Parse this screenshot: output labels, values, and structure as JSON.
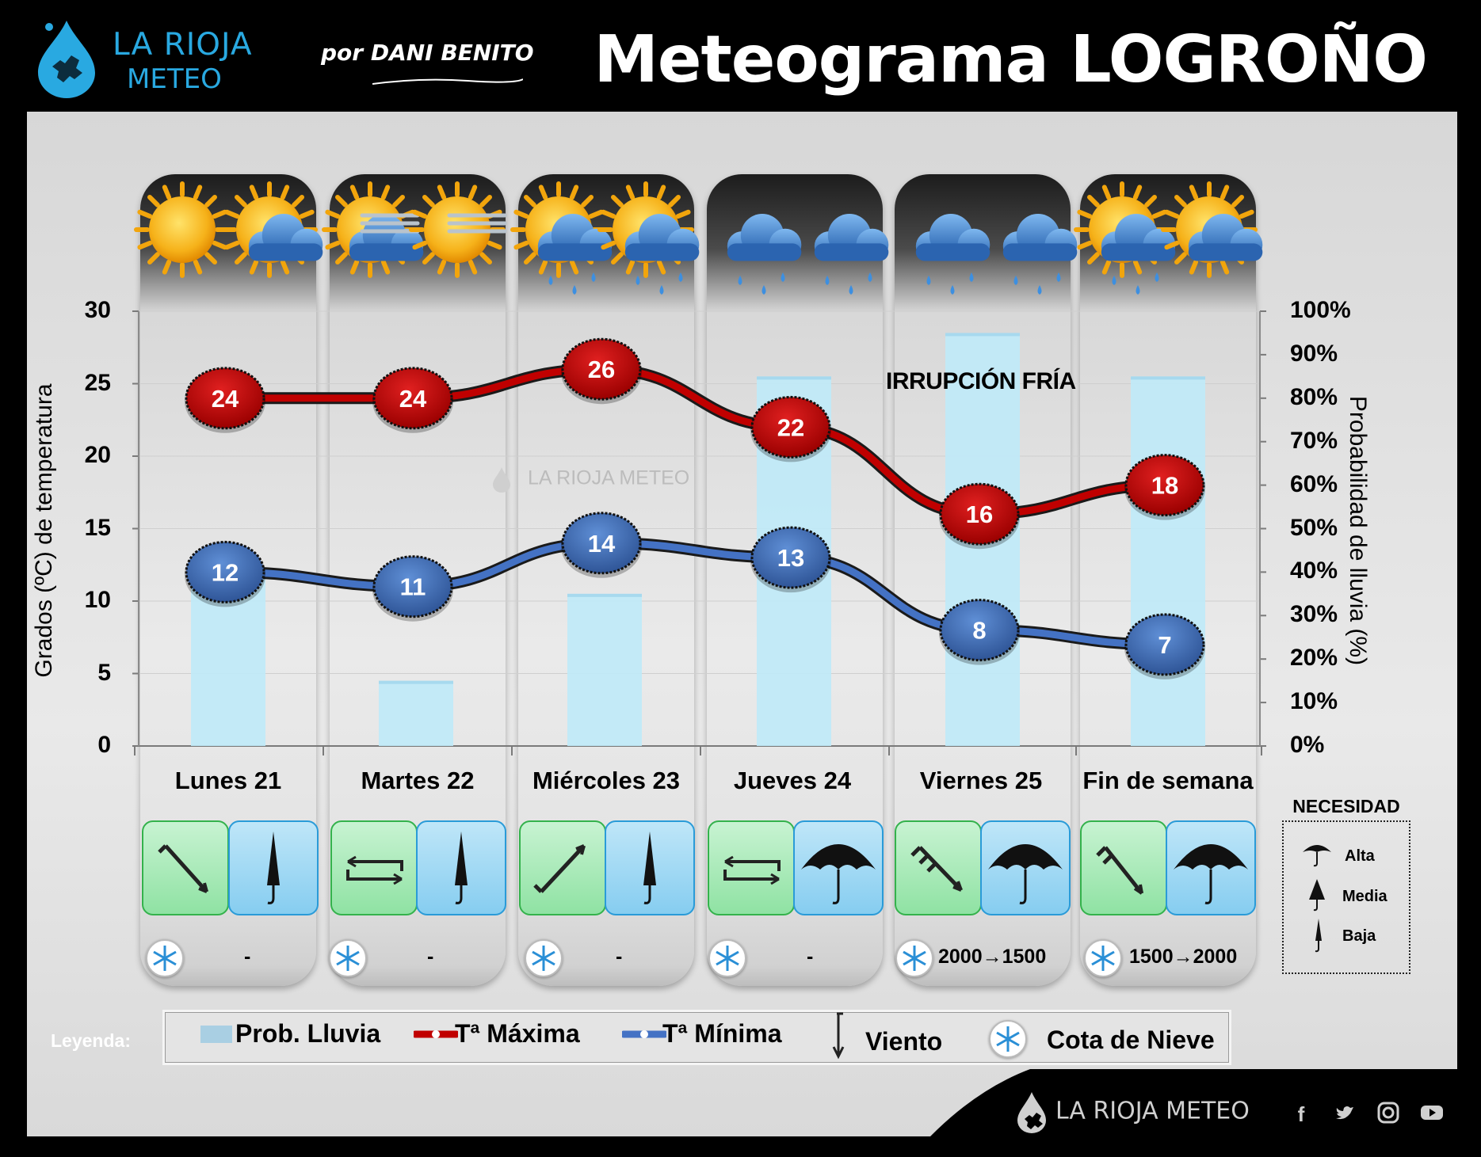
{
  "header": {
    "brand_line1": "LA RIOJA",
    "brand_line2": "METEO",
    "byline": "por DANI BENITO",
    "title": "Meteograma LOGROÑO"
  },
  "chart_data": {
    "type": "line",
    "title": "Meteograma LOGROÑO",
    "categories": [
      "Lunes 21",
      "Martes 22",
      "Miércoles 23",
      "Jueves 24",
      "Viernes 25",
      "Fin de semana"
    ],
    "ylabel": "Grados (ºC) de temperatura",
    "y2label": "Probabilidad de lluvia (%)",
    "ylim": [
      0,
      30
    ],
    "y2lim": [
      0,
      100
    ],
    "yticks": [
      "30",
      "25",
      "20",
      "15",
      "10",
      "5",
      "0"
    ],
    "y2ticks": [
      "100%",
      "90%",
      "80%",
      "70%",
      "60%",
      "50%",
      "40%",
      "30%",
      "20%",
      "10%",
      "0%"
    ],
    "series": [
      {
        "name": "Tª Máxima",
        "type": "line",
        "axis": "left",
        "color": "#c00000",
        "values": [
          24,
          24,
          26,
          22,
          16,
          18
        ],
        "labels": [
          "24",
          "24",
          "26",
          "22",
          "16",
          "18"
        ]
      },
      {
        "name": "Tª Mínima",
        "type": "line",
        "axis": "left",
        "color": "#4472c4",
        "values": [
          12,
          11,
          14,
          13,
          8,
          7
        ],
        "labels": [
          "12",
          "11",
          "14",
          "13",
          "8",
          "7"
        ]
      },
      {
        "name": "Prob. Lluvia",
        "type": "bar",
        "axis": "right",
        "color": "#bfeaf8",
        "values": [
          40,
          15,
          35,
          85,
          95,
          85
        ]
      }
    ],
    "weather_icons": [
      [
        "sun",
        "sun-cloud"
      ],
      [
        "sun-cloud-fog",
        "sun-fog"
      ],
      [
        "sun-cloud-rain",
        "sun-cloud-rain"
      ],
      [
        "cloud-rain",
        "cloud-rain"
      ],
      [
        "cloud-rain",
        "cloud-rain"
      ],
      [
        "sun-cloud-rain",
        "sun-cloud"
      ]
    ],
    "annotation": "IRRUPCIÓN FRÍA",
    "grid": true,
    "legend_position": "bottom"
  },
  "days": [
    {
      "label": "Lunes 21",
      "wind_icon": "arrow-down-right-icon",
      "umbrella": "Baja",
      "snow": "-"
    },
    {
      "label": "Martes 22",
      "wind_icon": "variable-wind-icon",
      "umbrella": "Baja",
      "snow": "-"
    },
    {
      "label": "Miércoles 23",
      "wind_icon": "arrow-up-right-icon",
      "umbrella": "Baja",
      "snow": "-"
    },
    {
      "label": "Jueves 24",
      "wind_icon": "variable-wind-icon",
      "umbrella": "Alta",
      "snow": "-"
    },
    {
      "label": "Viernes 25",
      "wind_icon": "strong-wind-down-right-icon",
      "umbrella": "Alta",
      "snow": "2000→1500"
    },
    {
      "label": "Fin de semana",
      "wind_icon": "strong-wind-down-right-icon",
      "umbrella": "Alta",
      "snow": "1500→2000"
    }
  ],
  "need_legend": {
    "title": "NECESIDAD",
    "items": [
      "Alta",
      "Media",
      "Baja"
    ]
  },
  "legend": {
    "heading": "Leyenda:",
    "rain": "Prob. Lluvia",
    "tmax": "Tª Máxima",
    "tmin": "Tª Mínima",
    "wind": "Viento",
    "snow": "Cota de Nieve"
  },
  "watermark": "LA RIOJA METEO",
  "footer": {
    "brand": "LA RIOJA METEO",
    "social_icons": [
      "facebook-icon",
      "twitter-icon",
      "instagram-icon",
      "youtube-icon"
    ]
  },
  "colors": {
    "tmax": "#c00000",
    "tmin": "#4472c4",
    "rain_bar": "#bfeaf8",
    "wind_box": "#8fe2a3",
    "umbrella_box": "#86cdf0",
    "brand": "#29a9e1"
  }
}
